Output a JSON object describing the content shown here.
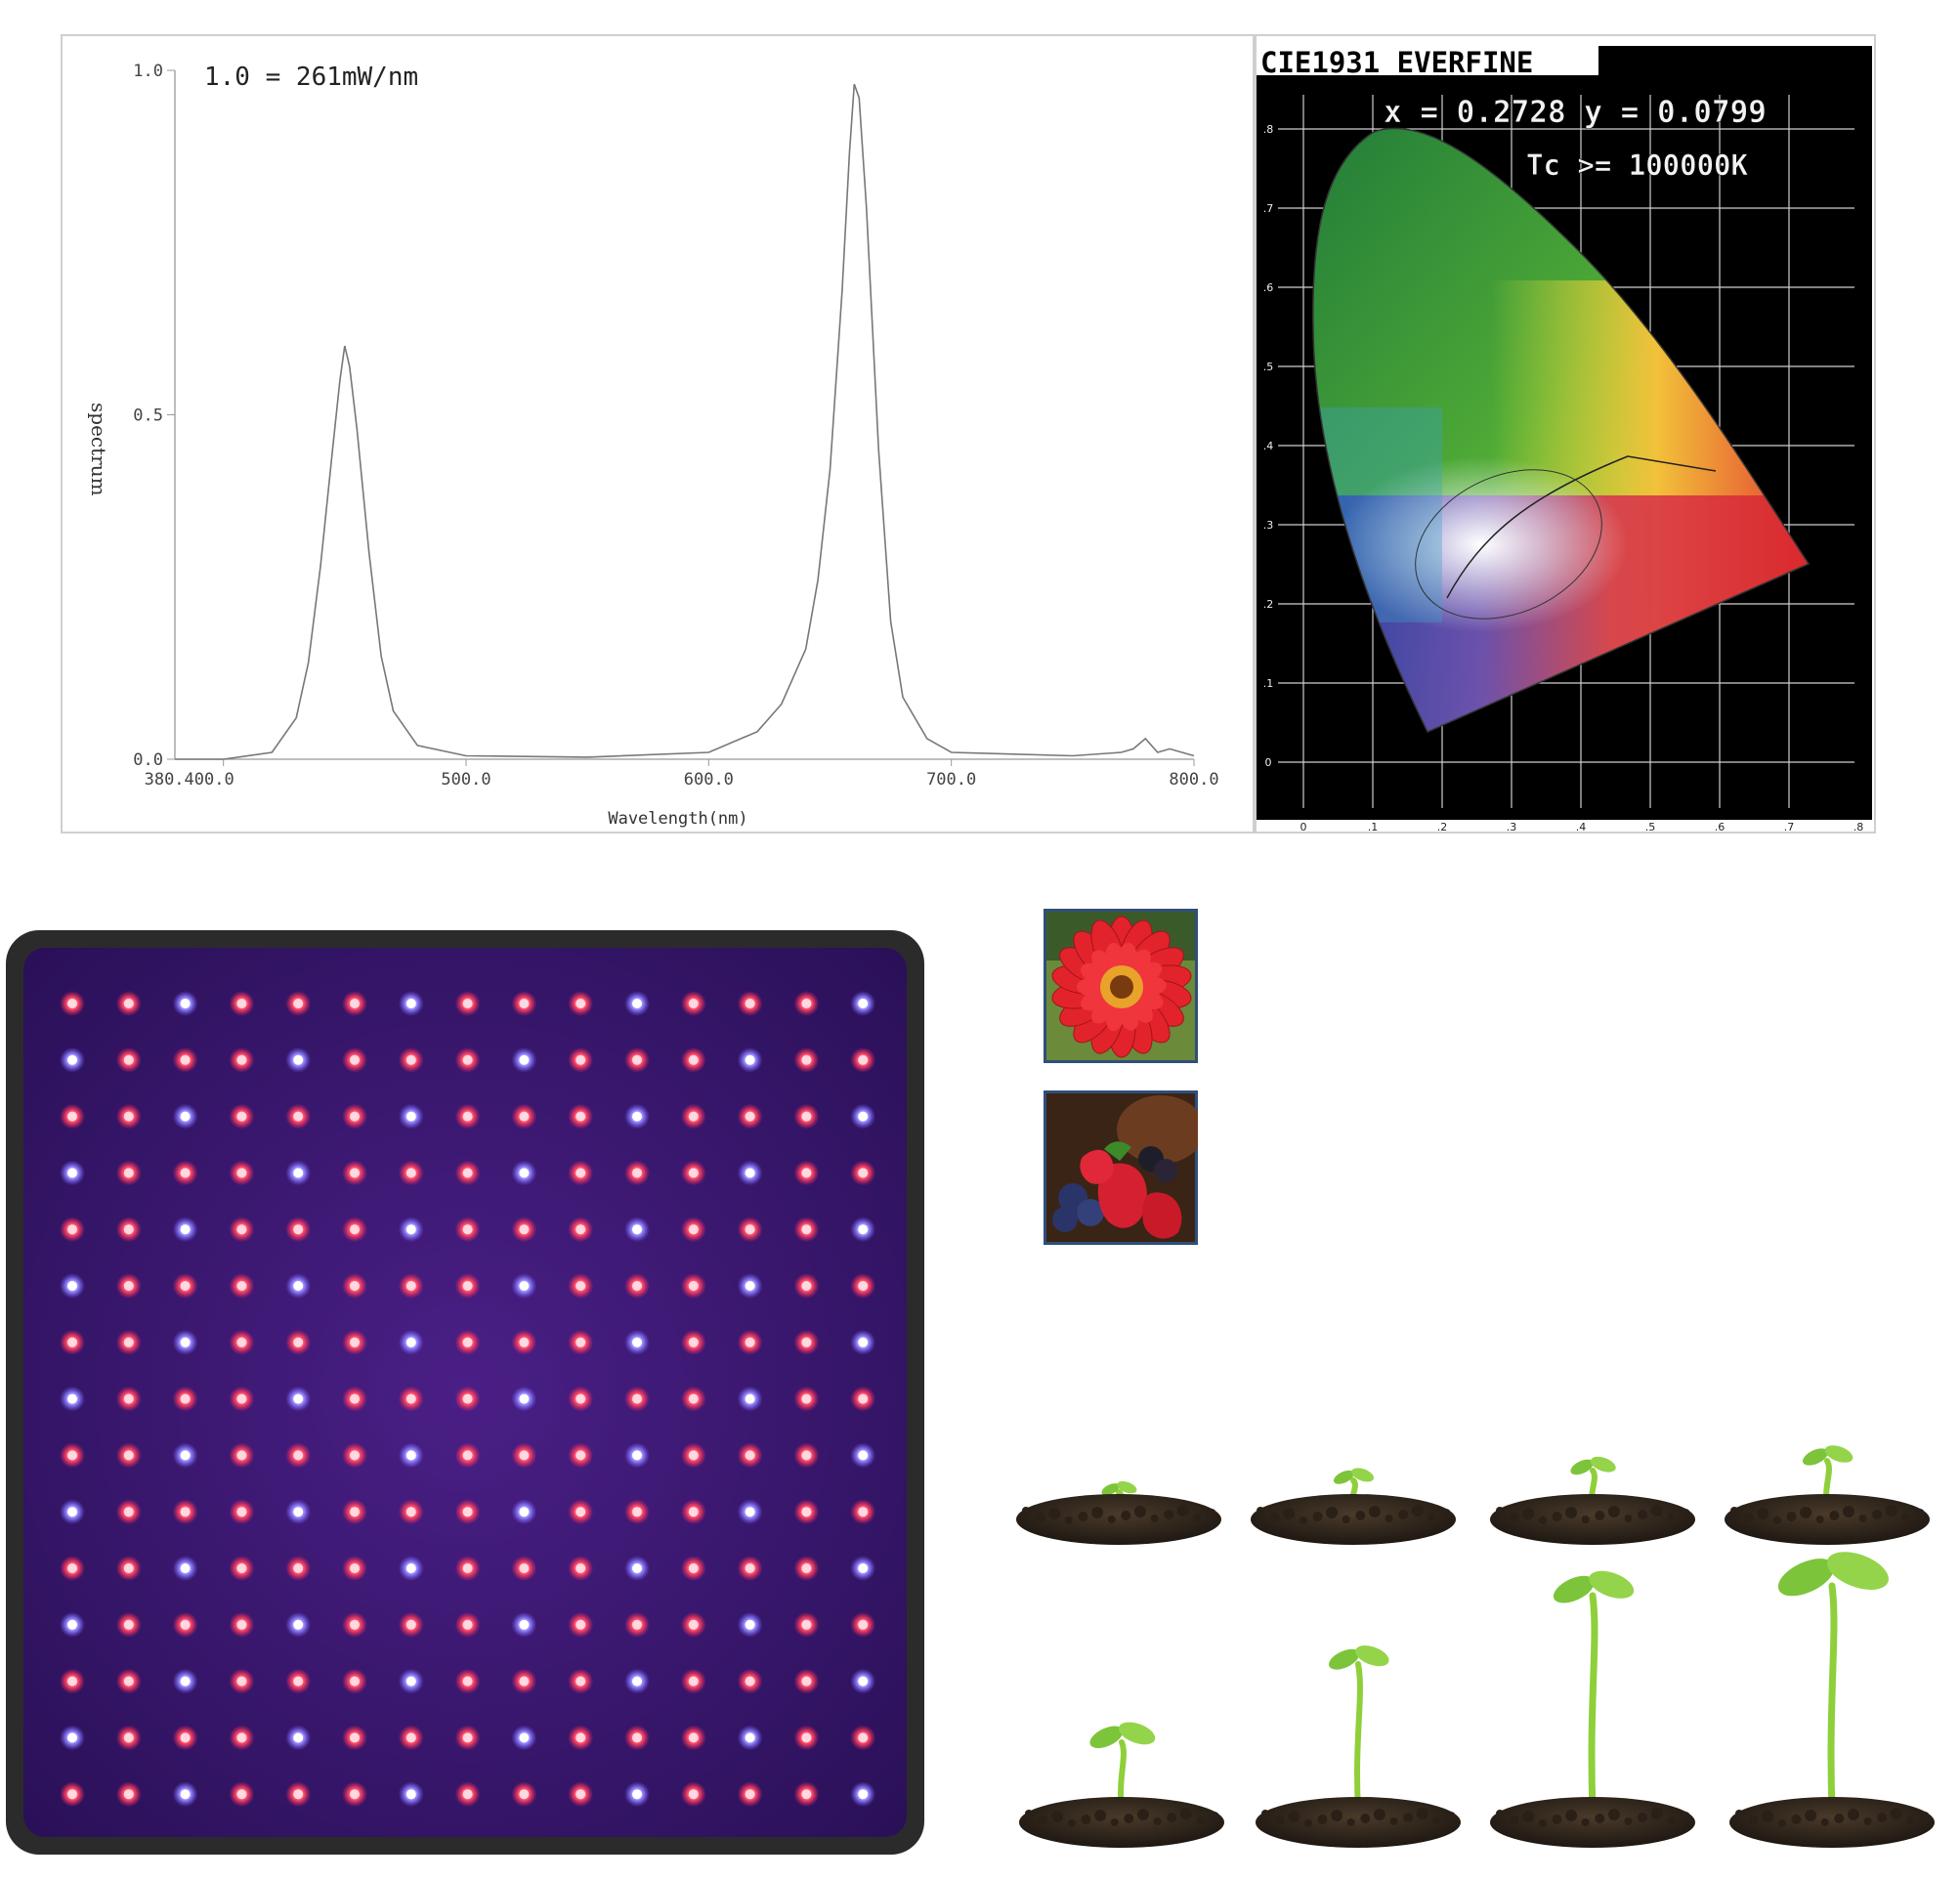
{
  "spectrum": {
    "scale_note": "1.0 = 261mW/nm",
    "ylabel": "spectrum",
    "xlabel": "Wavelength(nm)",
    "y_ticks": [
      "1.0",
      "0.5",
      "0.0"
    ],
    "x_ticks": [
      "380.400.0",
      "500.0",
      "600.0",
      "700.0",
      "800.0"
    ]
  },
  "cie": {
    "title": "CIE1931 EVERFINE",
    "coords": "x = 0.2728 y = 0.0799",
    "tc": "Tc >= 100000K",
    "x_ticks": [
      "0",
      ".1",
      ".2",
      ".3",
      ".4",
      ".5",
      ".6",
      ".7",
      ".8"
    ],
    "y_ticks": [
      ".8",
      ".7",
      ".6",
      ".5",
      ".4",
      ".3",
      ".2",
      ".1",
      "0"
    ]
  },
  "chart_data": {
    "type": "line",
    "title": "",
    "xlabel": "Wavelength(nm)",
    "ylabel": "spectrum",
    "xlim": [
      380,
      800
    ],
    "ylim": [
      0,
      1.0
    ],
    "grid": false,
    "series": [
      {
        "x": [
          380,
          400,
          420,
          430,
          435,
          440,
          445,
          448,
          450,
          452,
          455,
          460,
          465,
          470,
          480,
          500,
          550,
          600,
          620,
          630,
          640,
          645,
          650,
          655,
          658,
          660,
          662,
          665,
          670,
          675,
          680,
          690,
          700,
          750,
          770,
          775,
          780,
          785,
          790,
          800
        ],
        "values": [
          0,
          0,
          0.01,
          0.06,
          0.14,
          0.28,
          0.45,
          0.55,
          0.6,
          0.57,
          0.48,
          0.3,
          0.15,
          0.07,
          0.02,
          0.005,
          0.003,
          0.01,
          0.04,
          0.08,
          0.16,
          0.26,
          0.42,
          0.68,
          0.88,
          0.98,
          0.96,
          0.8,
          0.45,
          0.2,
          0.09,
          0.03,
          0.01,
          0.005,
          0.01,
          0.015,
          0.03,
          0.01,
          0.015,
          0.005
        ]
      }
    ]
  },
  "led_panel": {
    "rows": 15,
    "cols": 15,
    "red_color": "#ff3a5a",
    "blue_color": "#8a7dff",
    "panel_color": "#3a1670",
    "frame_color": "#2d2d2d"
  }
}
